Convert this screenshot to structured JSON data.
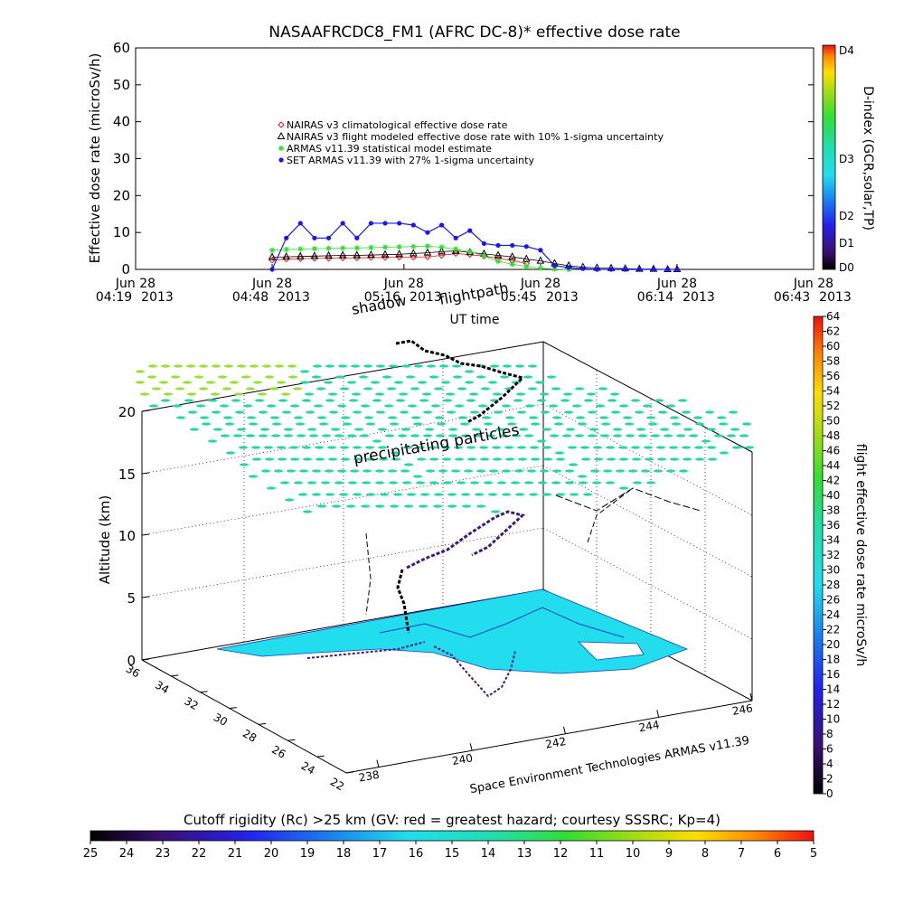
{
  "colors": {
    "nairas_clim": "#d22020",
    "nairas_flight": "#000000",
    "armas_model": "#33dd33",
    "set_armas": "#1818ee",
    "water": "#22ddee",
    "ground_track": "#000000",
    "flight_path": "#3a1f7a",
    "particles": "#22d9a0"
  },
  "chart_data": [
    {
      "type": "line",
      "title": "NASAAFRCDC8_FM1 (AFRC DC-8)* effective dose rate",
      "xlabel": "UT time",
      "ylabel": "Effective dose rate (microSv/h)",
      "ylim": [
        0,
        60
      ],
      "yticks": [
        "0",
        "10",
        "20",
        "30",
        "40",
        "50",
        "60"
      ],
      "xlim": [
        "2013-06-28 04:19",
        "2013-06-28 06:43"
      ],
      "xticks": [
        {
          "date": "Jun 28",
          "time": "04:19",
          "year": "2013"
        },
        {
          "date": "Jun 28",
          "time": "04:48",
          "year": "2013"
        },
        {
          "date": "Jun 28",
          "time": "05:16",
          "year": "2013"
        },
        {
          "date": "Jun 28",
          "time": "05:45",
          "year": "2013"
        },
        {
          "date": "Jun 28",
          "time": "06:14",
          "year": "2013"
        },
        {
          "date": "Jun 28",
          "time": "06:43",
          "year": "2013"
        }
      ],
      "legend_position": "top-center",
      "series": [
        {
          "name": "NAIRAS v3 climatological effective dose rate",
          "marker": "diamond",
          "x": [
            "04:48",
            "04:51",
            "04:54",
            "04:57",
            "05:00",
            "05:03",
            "05:06",
            "05:09",
            "05:12",
            "05:15",
            "05:18",
            "05:21",
            "05:24",
            "05:27",
            "05:30",
            "05:33",
            "05:36",
            "05:39",
            "05:42"
          ],
          "y": [
            2.5,
            2.8,
            2.9,
            3.0,
            3.0,
            3.1,
            3.1,
            3.2,
            3.2,
            3.3,
            3.3,
            3.4,
            3.8,
            4.3,
            4.0,
            3.6,
            3.0,
            2.4,
            1.6
          ]
        },
        {
          "name": "NAIRAS v3 flight modeled effective dose rate with 10% 1-sigma uncertainty",
          "marker": "triangle",
          "x": [
            "04:48",
            "04:51",
            "04:54",
            "04:57",
            "05:00",
            "05:03",
            "05:06",
            "05:09",
            "05:12",
            "05:15",
            "05:18",
            "05:21",
            "05:24",
            "05:27",
            "05:30",
            "05:33",
            "05:36",
            "05:39",
            "05:42",
            "05:45",
            "05:48",
            "05:51",
            "05:54",
            "05:57",
            "06:00",
            "06:03",
            "06:06",
            "06:09",
            "06:12",
            "06:14"
          ],
          "y": [
            3.3,
            3.4,
            3.5,
            3.6,
            3.7,
            3.8,
            3.8,
            3.9,
            4.0,
            4.1,
            4.3,
            4.5,
            4.8,
            5.0,
            4.6,
            4.2,
            3.8,
            3.4,
            2.8,
            2.3,
            1.6,
            1.0,
            0.6,
            0.4,
            0.3,
            0.2,
            0.1,
            0.1,
            0.0,
            0.0
          ]
        },
        {
          "name": "ARMAS v11.39 statistical model estimate",
          "marker": "asterisk",
          "x": [
            "04:48",
            "04:51",
            "04:54",
            "04:57",
            "05:00",
            "05:03",
            "05:06",
            "05:09",
            "05:12",
            "05:15",
            "05:18",
            "05:21",
            "05:24",
            "05:27",
            "05:30",
            "05:33",
            "05:36",
            "05:39",
            "05:42",
            "05:45",
            "05:48",
            "05:51"
          ],
          "y": [
            5.2,
            5.4,
            5.5,
            5.6,
            5.7,
            5.8,
            5.8,
            5.9,
            6.0,
            6.1,
            6.2,
            6.3,
            6.0,
            5.5,
            4.8,
            3.6,
            2.2,
            1.4,
            0.8,
            0.3,
            0.1,
            0.0
          ]
        },
        {
          "name": "SET ARMAS v11.39 with 27% 1-sigma uncertainty",
          "marker": "circle",
          "x": [
            "04:48",
            "04:51",
            "04:54",
            "04:57",
            "05:00",
            "05:03",
            "05:06",
            "05:09",
            "05:12",
            "05:15",
            "05:18",
            "05:21",
            "05:24",
            "05:27",
            "05:30",
            "05:33",
            "05:36",
            "05:39",
            "05:42",
            "05:45",
            "05:48",
            "05:51",
            "05:54",
            "05:57",
            "06:00",
            "06:03",
            "06:06",
            "06:09",
            "06:12",
            "06:14"
          ],
          "y": [
            0,
            8.5,
            12.5,
            8.5,
            8.5,
            12.5,
            8.5,
            12.5,
            12.5,
            12.5,
            12.0,
            10.0,
            12.0,
            8.5,
            10.5,
            7.0,
            6.5,
            6.5,
            6.2,
            5.2,
            1.0,
            0.5,
            0.2,
            0.0,
            0.0,
            0.0,
            0.0,
            0.0,
            0.0,
            0.0
          ]
        }
      ]
    },
    {
      "type": "colorbar",
      "label": "D-index (GCR,solar,TP)",
      "ticks": [
        "D0",
        "D1",
        "D2",
        "D3",
        "D4"
      ]
    },
    {
      "type": "scatter",
      "subtype": "3d",
      "xlabel": "Space Environment Technologies ARMAS v11.39",
      "ylabel": "",
      "zlabel": "Altitude (km)",
      "xticks": [
        "238",
        "240",
        "242",
        "244",
        "246"
      ],
      "yticks": [
        "22",
        "24",
        "26",
        "28",
        "30",
        "32",
        "34",
        "36"
      ],
      "zticks": [
        "0",
        "5",
        "10",
        "15",
        "20"
      ],
      "annotations": [
        "shadow",
        "flightpath",
        "precipitating particles"
      ]
    },
    {
      "type": "colorbar",
      "label": "flight effective dose rate microSv/h",
      "range": [
        0,
        64
      ],
      "ticks": [
        "0",
        "2",
        "4",
        "6",
        "8",
        "10",
        "12",
        "14",
        "16",
        "18",
        "20",
        "22",
        "24",
        "26",
        "28",
        "30",
        "32",
        "34",
        "36",
        "38",
        "40",
        "42",
        "44",
        "46",
        "48",
        "50",
        "52",
        "54",
        "56",
        "58",
        "60",
        "62",
        "64"
      ]
    },
    {
      "type": "colorbar",
      "label": "Cutoff rigidity (Rc) >25 km (GV: red = greatest hazard; courtesy SSSRC; Kp=4)",
      "range": [
        25,
        5
      ],
      "ticks": [
        "25",
        "24",
        "23",
        "22",
        "21",
        "20",
        "19",
        "18",
        "17",
        "16",
        "15",
        "14",
        "13",
        "12",
        "11",
        "10",
        "9",
        "8",
        "7",
        "6",
        "5"
      ]
    }
  ]
}
